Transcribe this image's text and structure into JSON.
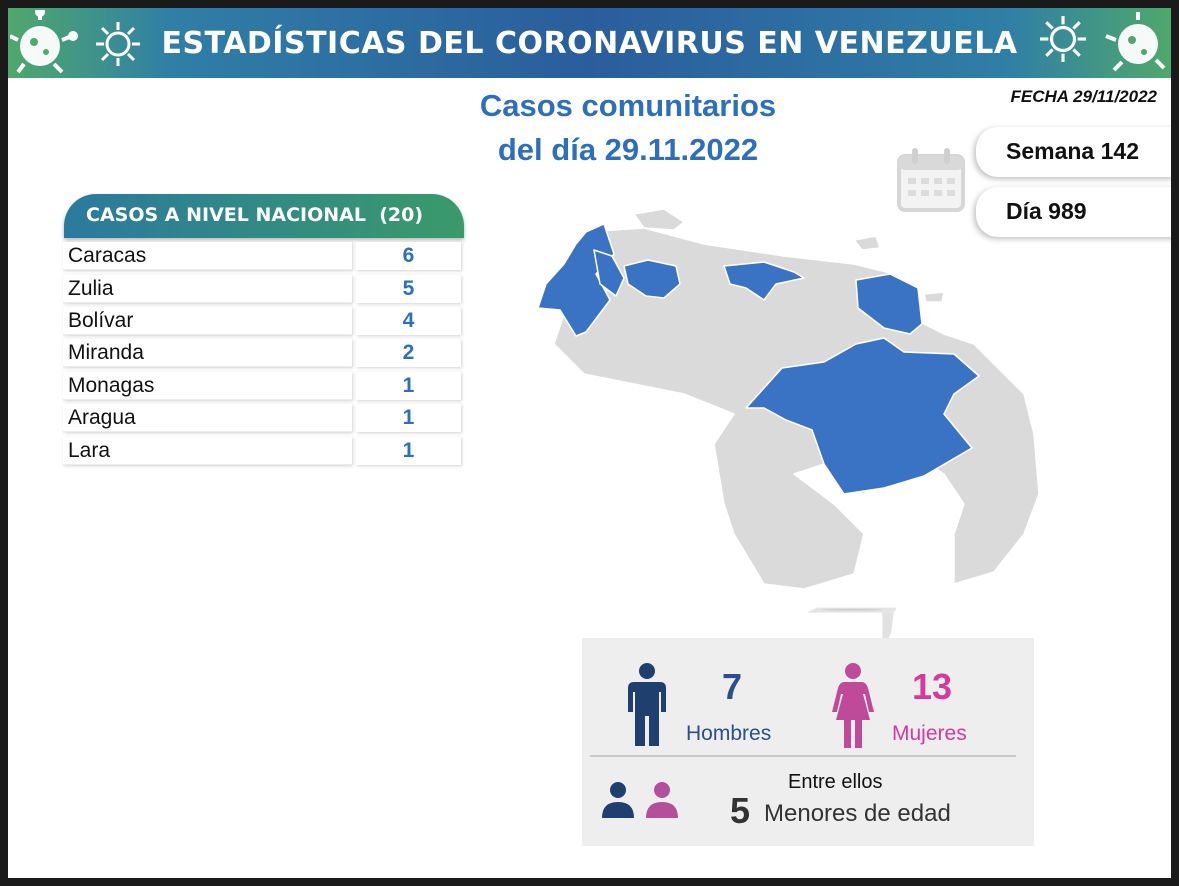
{
  "banner": {
    "title": "ESTADÍSTICAS DEL CORONAVIRUS EN VENEZUELA"
  },
  "date_label": "FECHA 29/11/2022",
  "subtitle": {
    "line1": "Casos comunitarios",
    "line2": "del día 29.11.2022"
  },
  "week": {
    "label": "Semana 142"
  },
  "day": {
    "label": "Día 989"
  },
  "national_table": {
    "header": "CASOS A NIVEL NACIONAL  (20)",
    "rows": [
      {
        "name": "Caracas",
        "value": "6"
      },
      {
        "name": "Zulia",
        "value": "5"
      },
      {
        "name": "Bolívar",
        "value": "4"
      },
      {
        "name": "Miranda",
        "value": "2"
      },
      {
        "name": "Monagas",
        "value": "1"
      },
      {
        "name": "Aragua",
        "value": "1"
      },
      {
        "name": "Lara",
        "value": "1"
      }
    ]
  },
  "gender": {
    "men_count": "7",
    "men_label": "Hombres",
    "women_count": "13",
    "women_label": "Mujeres",
    "minors_prefix": "Entre ellos",
    "minors_count": "5",
    "minors_label": "Menores de edad"
  },
  "colors": {
    "accent_blue": "#2d6fbd",
    "male_navy": "#1f3f6e",
    "female_pink": "#d6399c",
    "map_highlight": "#3b73c4",
    "map_base": "#dadada"
  },
  "icons": [
    "virus-icon",
    "calendar-icon",
    "man-icon",
    "woman-icon",
    "people-icon"
  ]
}
